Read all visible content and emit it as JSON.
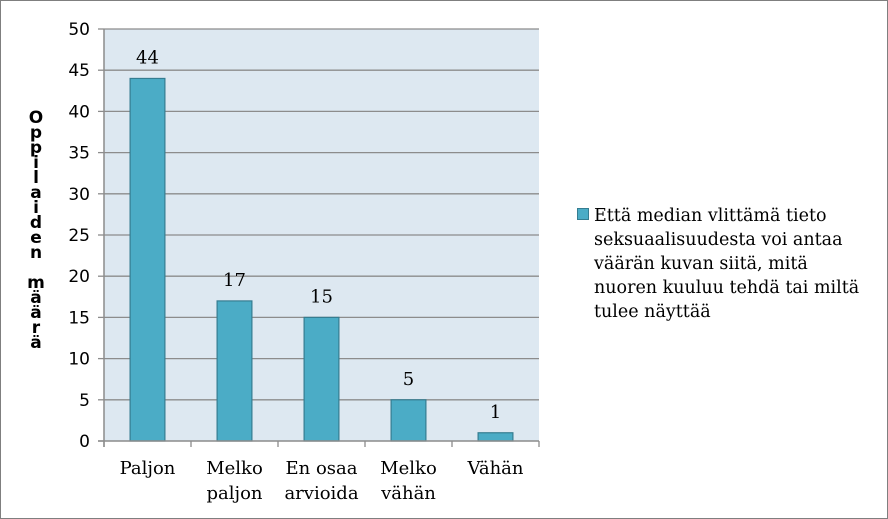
{
  "chart_data": {
    "type": "bar",
    "categories": [
      [
        "Paljon"
      ],
      [
        "Melko",
        "paljon"
      ],
      [
        "En osaa",
        "arvioida"
      ],
      [
        "Melko",
        "vähän"
      ],
      [
        "Vähän"
      ]
    ],
    "series": [
      {
        "name": "Että median vlittämä tieto seksuaalisuudesta voi antaa väärän kuvan siitä, mitä nuoren kuuluu tehdä tai miltä tulee näyttää",
        "values": [
          44,
          17,
          15,
          5,
          1
        ]
      }
    ],
    "data_labels": [
      "44",
      "17",
      "15",
      "5",
      "1"
    ],
    "yticks": [
      "0",
      "5",
      "10",
      "15",
      "20",
      "25",
      "30",
      "35",
      "40",
      "45",
      "50"
    ],
    "ylabel_rows": [
      "O",
      "p",
      "p",
      "i",
      "l",
      "a",
      "i",
      "d",
      "e",
      "n",
      "",
      "m",
      "ä",
      "ä",
      "r",
      "ä"
    ],
    "ylim": [
      0,
      50
    ],
    "grid": true,
    "legend_position": "right",
    "colors": {
      "bar": "#4bacc6",
      "bar_edge": "#357d91",
      "plot_bg": "#dde8f1",
      "grid": "#8c8c8c",
      "axis": "#8c8c8c"
    }
  },
  "legend": {
    "text": "Että median vlittämä tieto seksuaalisuudesta voi antaa väärän kuvan siitä, mitä nuoren kuuluu tehdä tai miltä tulee näyttää"
  }
}
